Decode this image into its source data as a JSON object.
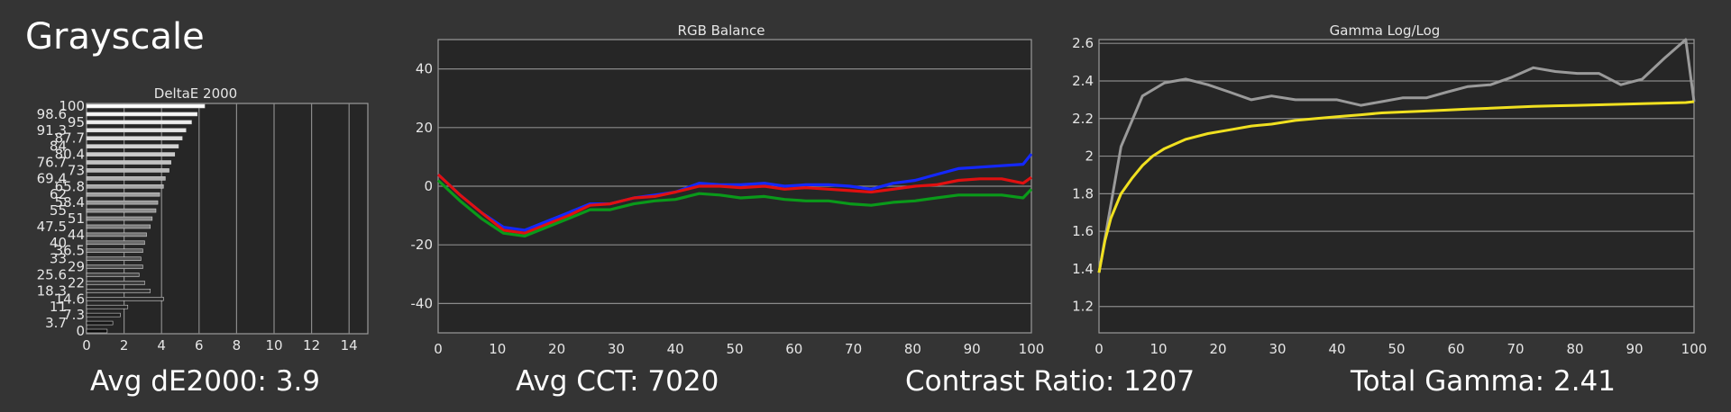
{
  "title": "Grayscale",
  "summary": {
    "avg_de_label": "Avg dE2000:",
    "avg_de_value": "3.9",
    "avg_cct_label": "Avg CCT:",
    "avg_cct_value": "7020",
    "contrast_label": "Contrast Ratio:",
    "contrast_value": "1207",
    "gamma_label": "Total Gamma:",
    "gamma_value": "2.41"
  },
  "chart_data": [
    {
      "type": "bar",
      "orientation": "horizontal",
      "title": "DeltaE 2000",
      "xlim": [
        0,
        15
      ],
      "xticks": [
        "0",
        "2",
        "4",
        "6",
        "8",
        "10",
        "12",
        "14"
      ],
      "categories": [
        "100",
        "98.6",
        "95",
        "91.3",
        "87.7",
        "84",
        "80.4",
        "76.7",
        "73",
        "69.4",
        "65.8",
        "62",
        "58.4",
        "55",
        "51",
        "47.5",
        "44",
        "40",
        "36.5",
        "33",
        "29",
        "25.6",
        "22",
        "18.3",
        "14.6",
        "11",
        "7.3",
        "3.7",
        "0"
      ],
      "values": [
        6.3,
        5.9,
        5.6,
        5.3,
        5.1,
        4.9,
        4.7,
        4.5,
        4.4,
        4.2,
        4.1,
        3.9,
        3.8,
        3.7,
        3.5,
        3.4,
        3.2,
        3.1,
        3.0,
        2.9,
        3.0,
        2.8,
        3.1,
        3.4,
        4.1,
        2.2,
        1.8,
        1.4,
        1.1
      ]
    },
    {
      "type": "line",
      "title": "RGB Balance",
      "xlim": [
        0,
        100
      ],
      "ylim": [
        -50,
        50
      ],
      "xticks": [
        "0",
        "10",
        "20",
        "30",
        "40",
        "50",
        "60",
        "70",
        "80",
        "90",
        "100"
      ],
      "yticks": [
        "40",
        "20",
        "0",
        "-20",
        "-40"
      ],
      "x": [
        0,
        3.7,
        7.3,
        11,
        14.6,
        18.3,
        22,
        25.6,
        29,
        33,
        36.5,
        40,
        44,
        47.5,
        51,
        55,
        58.4,
        62,
        65.8,
        69.4,
        73,
        76.7,
        80.4,
        84,
        87.7,
        91.3,
        95,
        98.6,
        100
      ],
      "series": [
        {
          "color": "#1428ff",
          "values": [
            4,
            -3,
            -9,
            -14,
            -15,
            -12,
            -9,
            -6,
            -6,
            -4,
            -3,
            -2,
            1,
            0.5,
            0.5,
            1,
            0,
            0.5,
            0.5,
            0,
            -1,
            1,
            2,
            4,
            6,
            6.5,
            7,
            7.5,
            11
          ]
        },
        {
          "color": "#e01010",
          "values": [
            4,
            -3,
            -9,
            -15,
            -16,
            -13,
            -10,
            -6.5,
            -6,
            -4,
            -3.5,
            -2,
            0,
            0,
            -0.5,
            0,
            -1,
            -0.5,
            -1,
            -1.5,
            -2,
            -1,
            0,
            0.5,
            2,
            2.5,
            2.5,
            1,
            3
          ]
        },
        {
          "color": "#0a9a1a",
          "values": [
            2,
            -5,
            -11,
            -16,
            -17,
            -14,
            -11,
            -8,
            -8,
            -6,
            -5,
            -4.5,
            -2.5,
            -3,
            -4,
            -3.5,
            -4.5,
            -5,
            -5,
            -6,
            -6.5,
            -5.5,
            -5,
            -4,
            -3,
            -3,
            -3,
            -4,
            -1
          ]
        }
      ]
    },
    {
      "type": "line",
      "title": "Gamma Log/Log",
      "xlim": [
        0,
        100
      ],
      "ylim": [
        1.06,
        2.62
      ],
      "xticks": [
        "0",
        "10",
        "20",
        "30",
        "40",
        "50",
        "60",
        "70",
        "80",
        "90",
        "100"
      ],
      "yticks": [
        "2.6",
        "2.4",
        "2.2",
        "2",
        "1.8",
        "1.6",
        "1.4",
        "1.2"
      ],
      "series": [
        {
          "color": "#9a9a9a",
          "x": [
            0,
            3.7,
            7.3,
            11,
            14.6,
            18.3,
            22,
            25.6,
            29,
            33,
            36.5,
            40,
            44,
            47.5,
            51,
            55,
            58.4,
            62,
            65.8,
            69.4,
            73,
            76.7,
            80.4,
            84,
            87.7,
            91.3,
            95,
            98.6,
            100
          ],
          "values": [
            1.38,
            2.05,
            2.32,
            2.39,
            2.41,
            2.38,
            2.34,
            2.3,
            2.32,
            2.3,
            2.3,
            2.3,
            2.27,
            2.29,
            2.31,
            2.31,
            2.34,
            2.37,
            2.38,
            2.42,
            2.47,
            2.45,
            2.44,
            2.44,
            2.38,
            2.41,
            2.52,
            2.62,
            2.29
          ]
        },
        {
          "color": "#f0e020",
          "x": [
            0,
            1,
            2,
            3.7,
            5.5,
            7.3,
            9,
            11,
            14.6,
            18.3,
            22,
            25.6,
            29,
            33,
            36.5,
            40,
            44,
            47.5,
            51,
            55,
            58.4,
            62,
            65.8,
            69.4,
            73,
            76.7,
            80.4,
            84,
            87.7,
            91.3,
            95,
            98.6,
            100
          ],
          "values": [
            1.38,
            1.55,
            1.67,
            1.8,
            1.88,
            1.95,
            2.0,
            2.04,
            2.09,
            2.12,
            2.14,
            2.16,
            2.17,
            2.19,
            2.2,
            2.21,
            2.22,
            2.23,
            2.235,
            2.24,
            2.245,
            2.25,
            2.255,
            2.26,
            2.265,
            2.268,
            2.27,
            2.273,
            2.276,
            2.279,
            2.282,
            2.285,
            2.29
          ]
        }
      ]
    }
  ]
}
